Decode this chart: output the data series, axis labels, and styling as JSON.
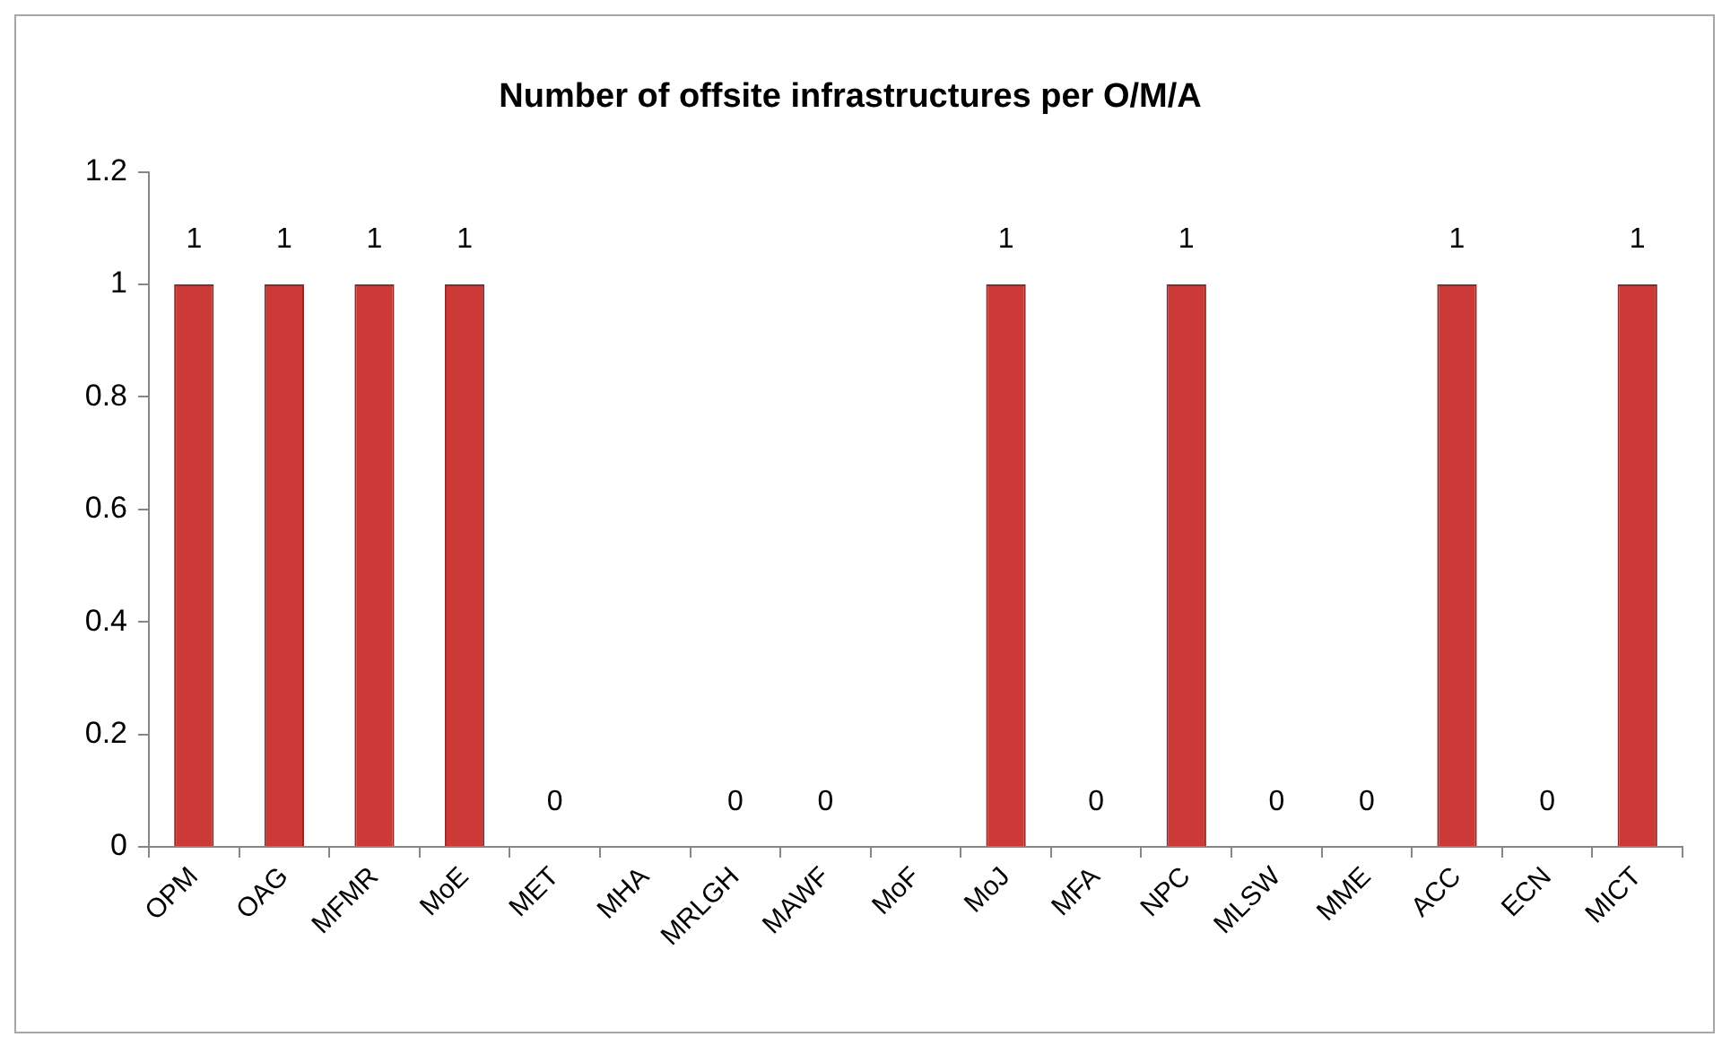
{
  "chart_data": {
    "type": "bar",
    "title": "Number of offsite infrastructures per O/M/A",
    "categories": [
      "OPM",
      "OAG",
      "MFMR",
      "MoE",
      "MET",
      "MHA",
      "MRLGH",
      "MAWF",
      "MoF",
      "MoJ",
      "MFA",
      "NPC",
      "MLSW",
      "MME",
      "ACC",
      "ECN",
      "MICT"
    ],
    "values": [
      1,
      1,
      1,
      1,
      0,
      null,
      0,
      0,
      null,
      1,
      0,
      1,
      0,
      0,
      1,
      0,
      1
    ],
    "color": "#cc3a38",
    "ylim": [
      0,
      1.2
    ],
    "yticks": [
      0,
      0.2,
      0.4,
      0.6,
      0.8,
      1,
      1.2
    ],
    "grid": false,
    "data_labels": true
  }
}
